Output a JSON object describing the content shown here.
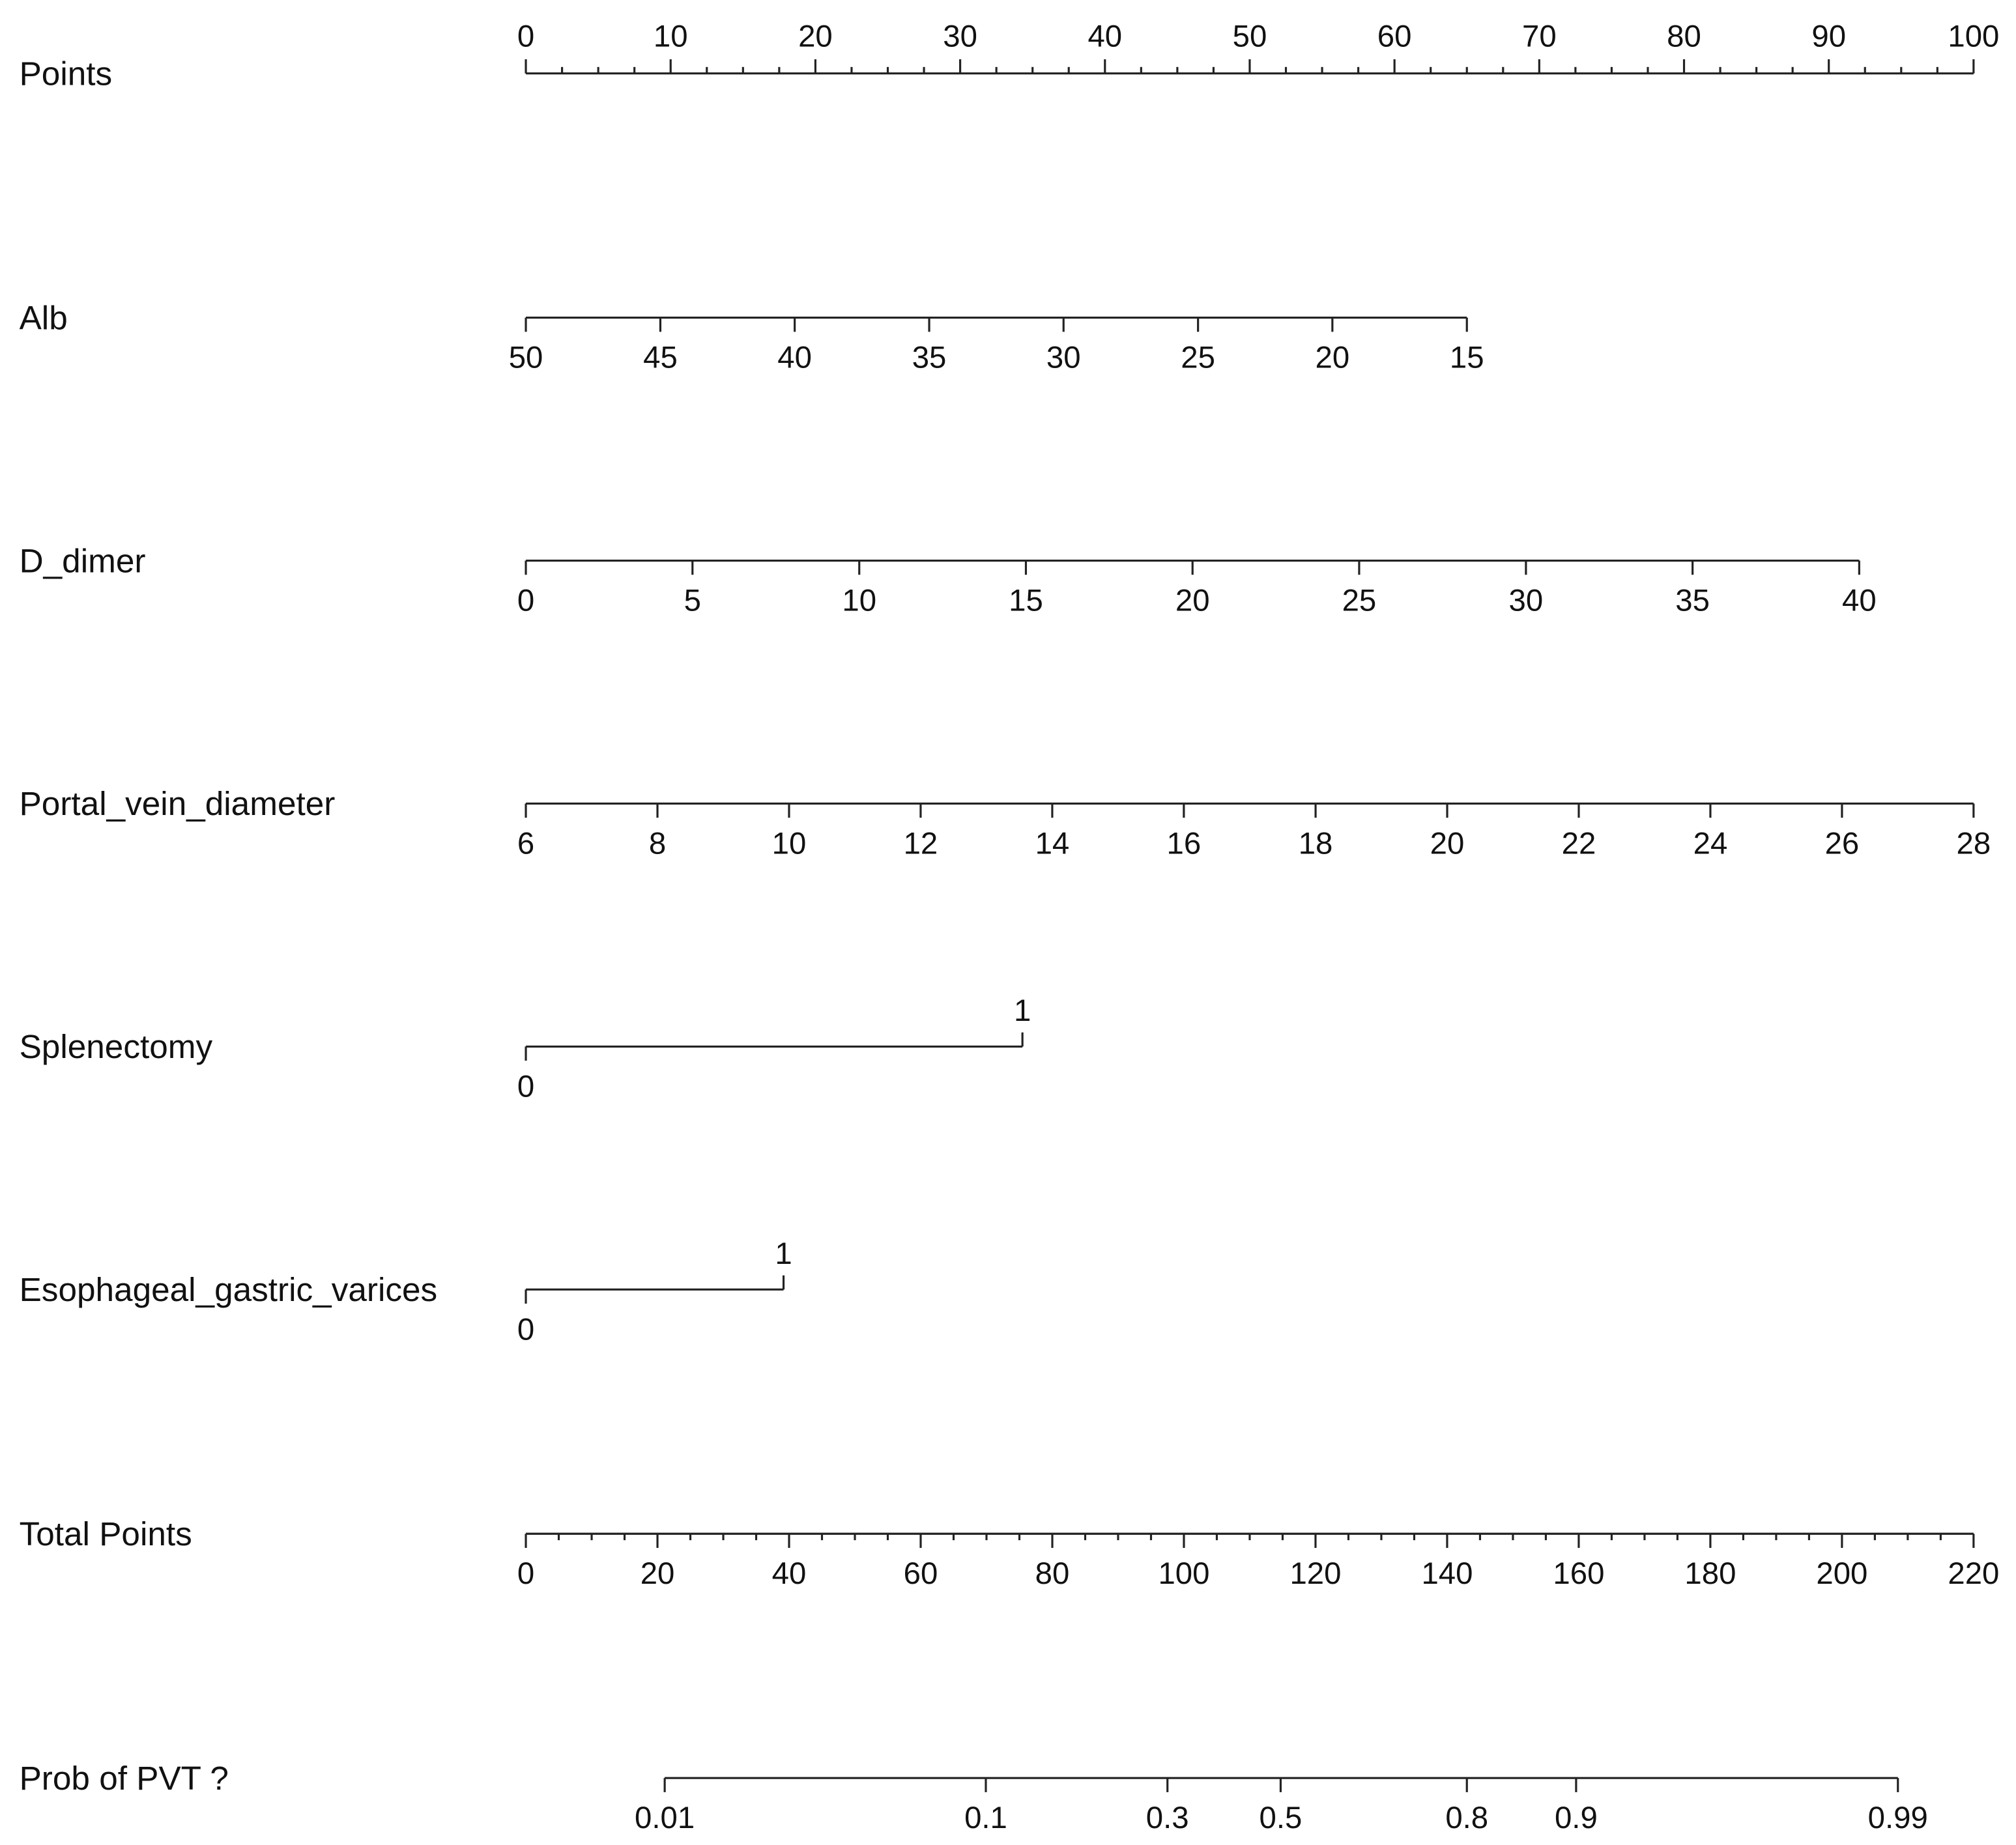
{
  "chart_data": {
    "type": "nomogram",
    "points_axis": {
      "name": "Points",
      "xlim": [
        0,
        100
      ],
      "xticks": [
        0,
        10,
        20,
        30,
        40,
        50,
        60,
        70,
        80,
        90,
        100
      ],
      "minor_ticks": [
        2.5,
        5,
        7.5,
        12.5,
        15,
        17.5,
        22.5,
        25,
        27.5,
        32.5,
        35,
        37.5,
        42.5,
        45,
        47.5,
        52.5,
        55,
        57.5,
        62.5,
        65,
        67.5,
        72.5,
        75,
        77.5,
        82.5,
        85,
        87.5,
        92.5,
        95,
        97.5
      ]
    },
    "variables": [
      {
        "name": "Alb",
        "ticks": [
          50,
          45,
          40,
          35,
          30,
          25,
          20,
          15
        ],
        "points": [
          0,
          9.29,
          18.57,
          27.86,
          37.14,
          46.43,
          55.71,
          65
        ]
      },
      {
        "name": "D_dimer",
        "ticks": [
          0,
          5,
          10,
          15,
          20,
          25,
          30,
          35,
          40
        ],
        "points": [
          0,
          11.51,
          23.03,
          34.54,
          46.05,
          57.56,
          69.08,
          80.59,
          92.1
        ]
      },
      {
        "name": "Portal_vein_diameter",
        "ticks": [
          6,
          8,
          10,
          12,
          14,
          16,
          18,
          20,
          22,
          24,
          26,
          28
        ],
        "points": [
          0,
          9.09,
          18.18,
          27.27,
          36.36,
          45.45,
          54.55,
          63.64,
          72.73,
          81.82,
          90.91,
          100
        ]
      },
      {
        "name": "Splenectomy",
        "ticks": [
          0,
          1
        ],
        "points": [
          0,
          34.3
        ]
      },
      {
        "name": "Esophageal_gastric_varices",
        "ticks": [
          0,
          1
        ],
        "points": [
          0,
          17.8
        ]
      }
    ],
    "total_points_axis": {
      "name": "Total Points",
      "xlim": [
        0,
        220
      ],
      "xticks": [
        0,
        20,
        40,
        60,
        80,
        100,
        120,
        140,
        160,
        180,
        200,
        220
      ],
      "minor_ticks": [
        5,
        10,
        15,
        25,
        30,
        35,
        45,
        50,
        55,
        65,
        70,
        75,
        85,
        90,
        95,
        105,
        110,
        115,
        125,
        130,
        135,
        145,
        150,
        155,
        165,
        170,
        175,
        185,
        190,
        195,
        205,
        210,
        215
      ]
    },
    "probability_axis": {
      "name": "Prob of PVT ?",
      "ticks": [
        0.01,
        0.1,
        0.3,
        0.5,
        0.8,
        0.9,
        0.99
      ],
      "total_points": [
        21.1,
        69.9,
        97.5,
        114.7,
        143.0,
        159.6,
        208.5
      ]
    }
  }
}
